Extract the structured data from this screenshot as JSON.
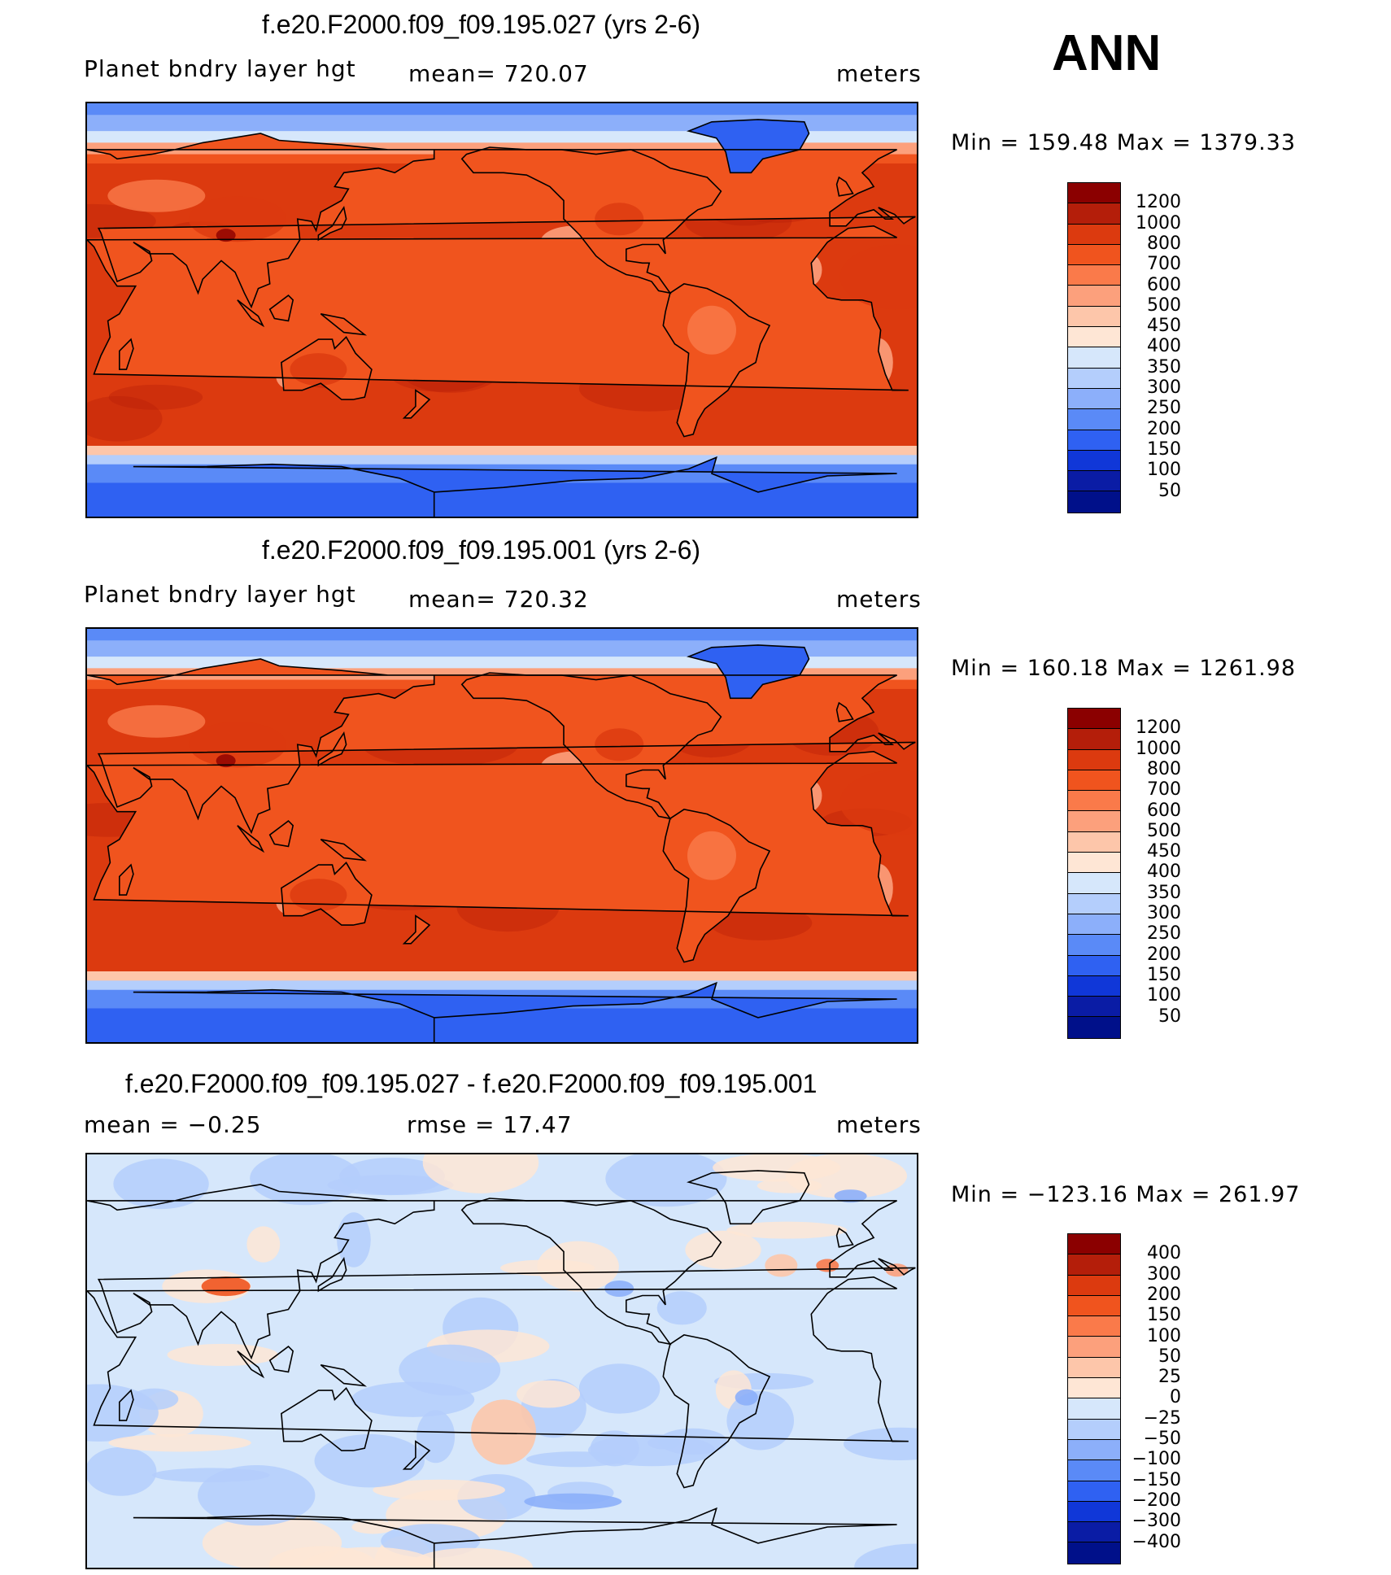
{
  "season": "ANN",
  "panels": [
    {
      "title": "f.e20.F2000.f09_f09.195.027 (yrs 2-6)",
      "left": "Planet bndry layer hgt",
      "center": "mean= 720.07",
      "right": "meters",
      "minmax": "Min = 159.48 Max = 1379.33",
      "type": "abs",
      "colorbar": {
        "labels": [
          "1200",
          "1000",
          "800",
          "700",
          "600",
          "500",
          "450",
          "400",
          "350",
          "300",
          "250",
          "200",
          "150",
          "100",
          "50"
        ],
        "colors": [
          "#8b0000",
          "#b41e0a",
          "#dc3a0f",
          "#f0541e",
          "#fa7a4a",
          "#fca07c",
          "#fdc6aa",
          "#fee6d5",
          "#d6e7fb",
          "#b4cefc",
          "#8caffa",
          "#5a8af7",
          "#2f61f2",
          "#1037d8",
          "#0a1ca5",
          "#00108a"
        ]
      },
      "map_features": {
        "seed": 27
      }
    },
    {
      "title": "f.e20.F2000.f09_f09.195.001 (yrs 2-6)",
      "left": "Planet bndry layer hgt",
      "center": "mean= 720.32",
      "right": "meters",
      "minmax": "Min = 160.18 Max = 1261.98",
      "type": "abs",
      "colorbar": {
        "labels": [
          "1200",
          "1000",
          "800",
          "700",
          "600",
          "500",
          "450",
          "400",
          "350",
          "300",
          "250",
          "200",
          "150",
          "100",
          "50"
        ],
        "colors": [
          "#8b0000",
          "#b41e0a",
          "#dc3a0f",
          "#f0541e",
          "#fa7a4a",
          "#fca07c",
          "#fdc6aa",
          "#fee6d5",
          "#d6e7fb",
          "#b4cefc",
          "#8caffa",
          "#5a8af7",
          "#2f61f2",
          "#1037d8",
          "#0a1ca5",
          "#00108a"
        ]
      },
      "map_features": {
        "seed": 1
      }
    },
    {
      "title": "f.e20.F2000.f09_f09.195.027 - f.e20.F2000.f09_f09.195.001",
      "left": "mean =   −0.25",
      "center": "rmse =    17.47",
      "right": "meters",
      "minmax": "Min = −123.16 Max = 261.97",
      "type": "diff",
      "colorbar": {
        "labels": [
          "400",
          "300",
          "200",
          "150",
          "100",
          "50",
          "25",
          "0",
          "−25",
          "−50",
          "−100",
          "−150",
          "−200",
          "−300",
          "−400"
        ],
        "colors": [
          "#8b0000",
          "#b41e0a",
          "#dc3a0f",
          "#f0541e",
          "#fa7a4a",
          "#fca07c",
          "#fdc6aa",
          "#fee6d5",
          "#d6e7fb",
          "#b4cefc",
          "#8caffa",
          "#5a8af7",
          "#2f61f2",
          "#1037d8",
          "#0a1ca5",
          "#00108a"
        ]
      },
      "map_features": {
        "seed": 99
      }
    }
  ]
}
